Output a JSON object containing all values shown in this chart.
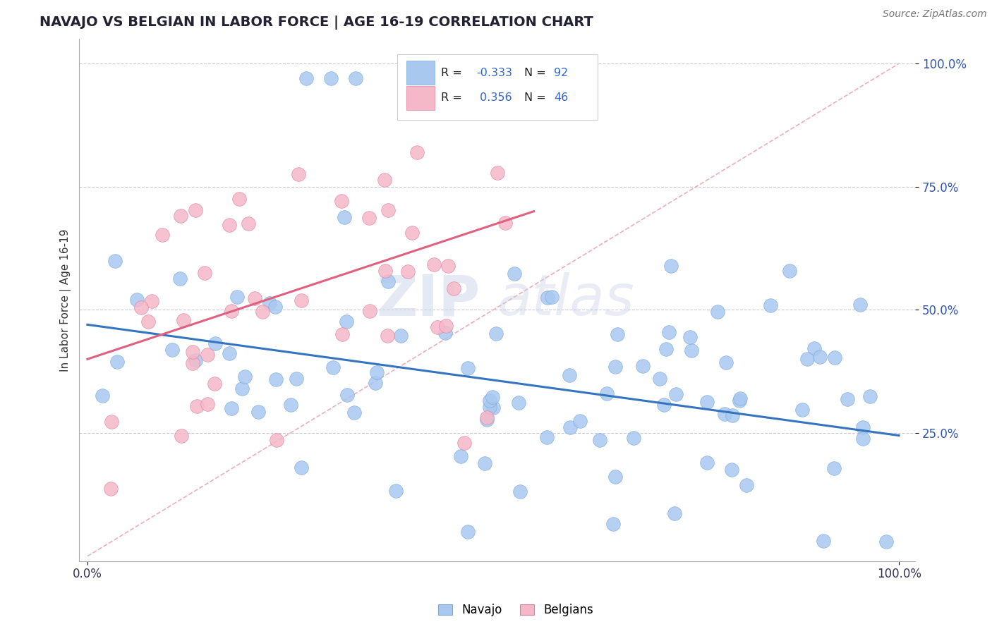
{
  "title": "NAVAJO VS BELGIAN IN LABOR FORCE | AGE 16-19 CORRELATION CHART",
  "source_text": "Source: ZipAtlas.com",
  "ylabel": "In Labor Force | Age 16-19",
  "navajo_color": "#a8c8f0",
  "navajo_edge": "#7aaad8",
  "belgian_color": "#f5b8c8",
  "belgian_edge": "#e080a0",
  "navajo_R": -0.333,
  "navajo_N": 92,
  "belgian_R": 0.356,
  "belgian_N": 46,
  "watermark_zip": "ZIP",
  "watermark_atlas": "atlas",
  "nav_trend_x0": 0.0,
  "nav_trend_y0": 0.47,
  "nav_trend_x1": 1.0,
  "nav_trend_y1": 0.245,
  "bel_trend_x0": 0.0,
  "bel_trend_y0": 0.4,
  "bel_trend_x1": 0.55,
  "bel_trend_y1": 0.7,
  "dash_line_x0": 0.0,
  "dash_line_y0": 0.0,
  "dash_line_x1": 1.0,
  "dash_line_y1": 1.0,
  "xlim": [
    0.0,
    1.0
  ],
  "ylim": [
    0.0,
    1.0
  ],
  "ytick_vals": [
    0.25,
    0.5,
    0.75,
    1.0
  ],
  "ytick_labels": [
    "25.0%",
    "50.0%",
    "75.0%",
    "100.0%"
  ],
  "xtick_vals": [
    0.0,
    1.0
  ],
  "xtick_labels": [
    "0.0%",
    "100.0%"
  ],
  "grid_vals": [
    0.25,
    0.5,
    0.75,
    1.0
  ],
  "title_fontsize": 14,
  "source_fontsize": 10,
  "tick_fontsize": 12,
  "ylabel_fontsize": 11
}
